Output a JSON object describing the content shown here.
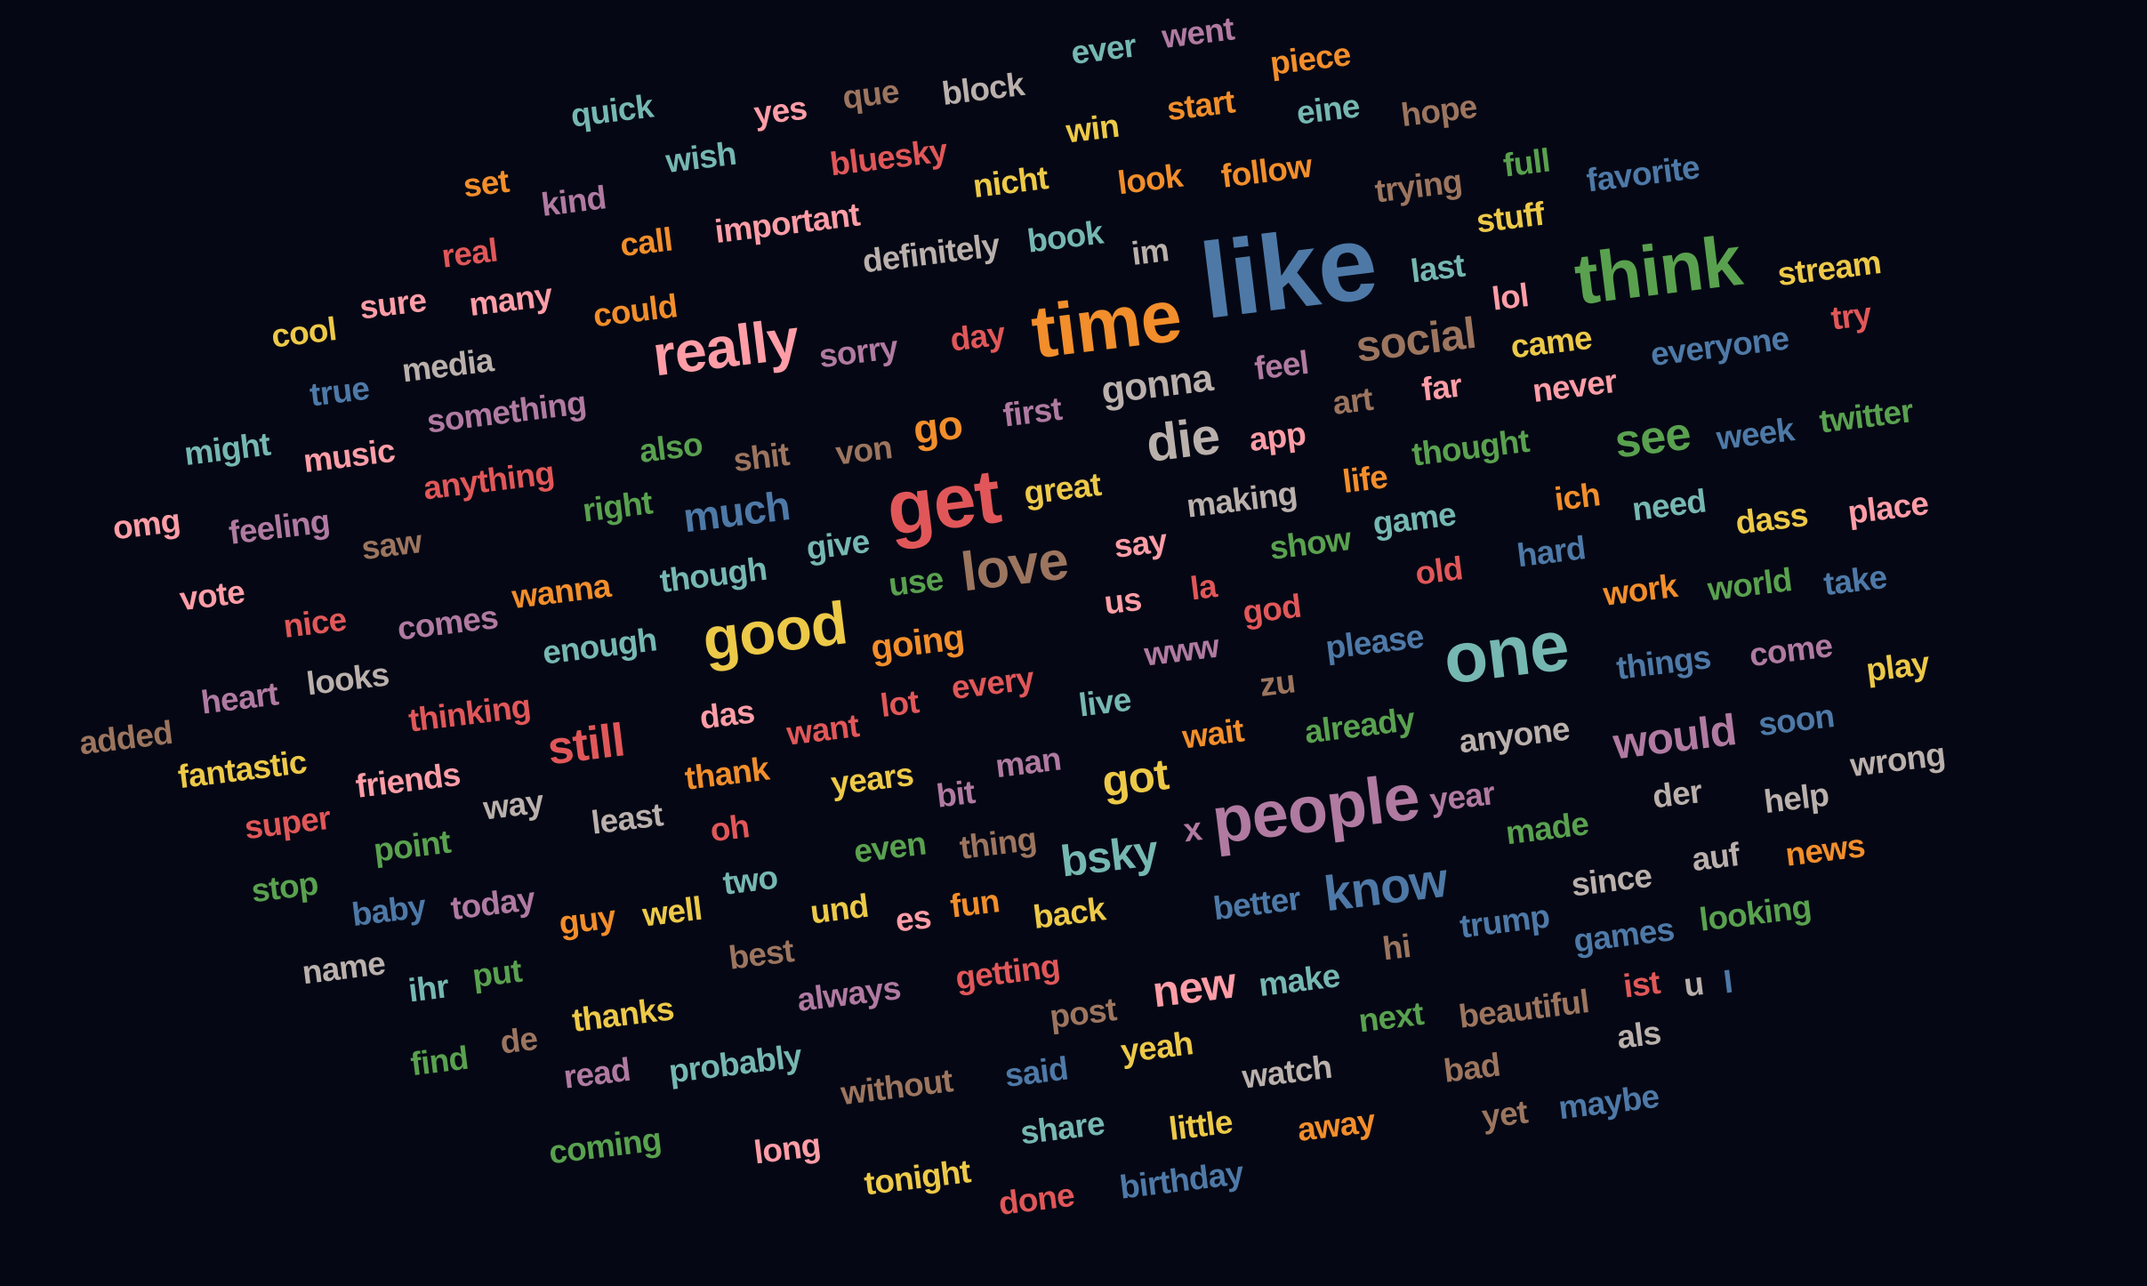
{
  "words": [
    {
      "text": "like",
      "color": "#4e79a7"
    },
    {
      "text": "time",
      "color": "#f28e2b"
    },
    {
      "text": "think",
      "color": "#59a14f"
    },
    {
      "text": "get",
      "color": "#e15759"
    },
    {
      "text": "people",
      "color": "#b07aa1"
    },
    {
      "text": "one",
      "color": "#76b7b2"
    },
    {
      "text": "good",
      "color": "#edc948"
    },
    {
      "text": "really",
      "color": "#ff9da7"
    },
    {
      "text": "love",
      "color": "#9c755f"
    },
    {
      "text": "die",
      "color": "#bab0ac"
    },
    {
      "text": "know",
      "color": "#4e79a7"
    },
    {
      "text": "still",
      "color": "#e15759"
    },
    {
      "text": "social",
      "color": "#9c755f"
    },
    {
      "text": "gonna",
      "color": "#bab0ac"
    },
    {
      "text": "would",
      "color": "#b07aa1"
    },
    {
      "text": "bsky",
      "color": "#76b7b2"
    },
    {
      "text": "got",
      "color": "#edc948"
    },
    {
      "text": "much",
      "color": "#4e79a7"
    },
    {
      "text": "see",
      "color": "#59a14f"
    },
    {
      "text": "new",
      "color": "#ff9da7"
    },
    {
      "text": "go",
      "color": "#f28e2b"
    },
    {
      "text": "going",
      "color": "#f28e2b"
    },
    {
      "text": "ever",
      "color": "#76b7b2"
    },
    {
      "text": "went",
      "color": "#b07aa1"
    },
    {
      "text": "piece",
      "color": "#f28e2b"
    },
    {
      "text": "quick",
      "color": "#76b7b2"
    },
    {
      "text": "yes",
      "color": "#ff9da7"
    },
    {
      "text": "que",
      "color": "#9c755f"
    },
    {
      "text": "block",
      "color": "#bab0ac"
    },
    {
      "text": "win",
      "color": "#edc948"
    },
    {
      "text": "start",
      "color": "#f28e2b"
    },
    {
      "text": "eine",
      "color": "#76b7b2"
    },
    {
      "text": "hope",
      "color": "#9c755f"
    },
    {
      "text": "wish",
      "color": "#76b7b2"
    },
    {
      "text": "bluesky",
      "color": "#e15759"
    },
    {
      "text": "full",
      "color": "#59a14f"
    },
    {
      "text": "set",
      "color": "#f28e2b"
    },
    {
      "text": "kind",
      "color": "#b07aa1"
    },
    {
      "text": "nicht",
      "color": "#edc948"
    },
    {
      "text": "look",
      "color": "#f28e2b"
    },
    {
      "text": "follow",
      "color": "#f28e2b"
    },
    {
      "text": "trying",
      "color": "#9c755f"
    },
    {
      "text": "favorite",
      "color": "#4e79a7"
    },
    {
      "text": "stuff",
      "color": "#edc948"
    },
    {
      "text": "real",
      "color": "#e15759"
    },
    {
      "text": "call",
      "color": "#f28e2b"
    },
    {
      "text": "important",
      "color": "#ff9da7"
    },
    {
      "text": "book",
      "color": "#76b7b2"
    },
    {
      "text": "im",
      "color": "#bab0ac"
    },
    {
      "text": "definitely",
      "color": "#bab0ac"
    },
    {
      "text": "last",
      "color": "#76b7b2"
    },
    {
      "text": "stream",
      "color": "#edc948"
    },
    {
      "text": "cool",
      "color": "#edc948"
    },
    {
      "text": "sure",
      "color": "#ff9da7"
    },
    {
      "text": "many",
      "color": "#ff9da7"
    },
    {
      "text": "could",
      "color": "#f28e2b"
    },
    {
      "text": "lol",
      "color": "#ff9da7"
    },
    {
      "text": "came",
      "color": "#edc948"
    },
    {
      "text": "try",
      "color": "#e15759"
    },
    {
      "text": "true",
      "color": "#4e79a7"
    },
    {
      "text": "media",
      "color": "#bab0ac"
    },
    {
      "text": "sorry",
      "color": "#b07aa1"
    },
    {
      "text": "day",
      "color": "#e15759"
    },
    {
      "text": "everyone",
      "color": "#4e79a7"
    },
    {
      "text": "feel",
      "color": "#b07aa1"
    },
    {
      "text": "far",
      "color": "#ff9da7"
    },
    {
      "text": "never",
      "color": "#ff9da7"
    },
    {
      "text": "art",
      "color": "#9c755f"
    },
    {
      "text": "something",
      "color": "#b07aa1"
    },
    {
      "text": "first",
      "color": "#b07aa1"
    },
    {
      "text": "twitter",
      "color": "#59a14f"
    },
    {
      "text": "might",
      "color": "#76b7b2"
    },
    {
      "text": "music",
      "color": "#ff9da7"
    },
    {
      "text": "also",
      "color": "#59a14f"
    },
    {
      "text": "shit",
      "color": "#9c755f"
    },
    {
      "text": "von",
      "color": "#9c755f"
    },
    {
      "text": "app",
      "color": "#ff9da7"
    },
    {
      "text": "thought",
      "color": "#59a14f"
    },
    {
      "text": "week",
      "color": "#4e79a7"
    },
    {
      "text": "anything",
      "color": "#e15759"
    },
    {
      "text": "omg",
      "color": "#ff9da7"
    },
    {
      "text": "feeling",
      "color": "#b07aa1"
    },
    {
      "text": "right",
      "color": "#59a14f"
    },
    {
      "text": "great",
      "color": "#edc948"
    },
    {
      "text": "making",
      "color": "#bab0ac"
    },
    {
      "text": "life",
      "color": "#f28e2b"
    },
    {
      "text": "ich",
      "color": "#f28e2b"
    },
    {
      "text": "need",
      "color": "#76b7b2"
    },
    {
      "text": "dass",
      "color": "#edc948"
    },
    {
      "text": "place",
      "color": "#ff9da7"
    },
    {
      "text": "saw",
      "color": "#9c755f"
    },
    {
      "text": "give",
      "color": "#76b7b2"
    },
    {
      "text": "say",
      "color": "#ff9da7"
    },
    {
      "text": "show",
      "color": "#59a14f"
    },
    {
      "text": "game",
      "color": "#76b7b2"
    },
    {
      "text": "hard",
      "color": "#4e79a7"
    },
    {
      "text": "vote",
      "color": "#ff9da7"
    },
    {
      "text": "wanna",
      "color": "#f28e2b"
    },
    {
      "text": "though",
      "color": "#76b7b2"
    },
    {
      "text": "use",
      "color": "#59a14f"
    },
    {
      "text": "us",
      "color": "#ff9da7"
    },
    {
      "text": "la",
      "color": "#e15759"
    },
    {
      "text": "god",
      "color": "#e15759"
    },
    {
      "text": "old",
      "color": "#e15759"
    },
    {
      "text": "work",
      "color": "#f28e2b"
    },
    {
      "text": "world",
      "color": "#59a14f"
    },
    {
      "text": "take",
      "color": "#4e79a7"
    },
    {
      "text": "nice",
      "color": "#e15759"
    },
    {
      "text": "comes",
      "color": "#b07aa1"
    },
    {
      "text": "enough",
      "color": "#76b7b2"
    },
    {
      "text": "www",
      "color": "#b07aa1"
    },
    {
      "text": "please",
      "color": "#4e79a7"
    },
    {
      "text": "things",
      "color": "#4e79a7"
    },
    {
      "text": "come",
      "color": "#b07aa1"
    },
    {
      "text": "play",
      "color": "#edc948"
    },
    {
      "text": "heart",
      "color": "#b07aa1"
    },
    {
      "text": "looks",
      "color": "#bab0ac"
    },
    {
      "text": "every",
      "color": "#e15759"
    },
    {
      "text": "zu",
      "color": "#9c755f"
    },
    {
      "text": "added",
      "color": "#9c755f"
    },
    {
      "text": "thinking",
      "color": "#e15759"
    },
    {
      "text": "das",
      "color": "#ff9da7"
    },
    {
      "text": "lot",
      "color": "#e15759"
    },
    {
      "text": "live",
      "color": "#76b7b2"
    },
    {
      "text": "wait",
      "color": "#f28e2b"
    },
    {
      "text": "already",
      "color": "#59a14f"
    },
    {
      "text": "anyone",
      "color": "#bab0ac"
    },
    {
      "text": "soon",
      "color": "#4e79a7"
    },
    {
      "text": "wrong",
      "color": "#bab0ac"
    },
    {
      "text": "fantastic",
      "color": "#edc948"
    },
    {
      "text": "want",
      "color": "#e15759"
    },
    {
      "text": "man",
      "color": "#b07aa1"
    },
    {
      "text": "friends",
      "color": "#ff9da7"
    },
    {
      "text": "thank",
      "color": "#f28e2b"
    },
    {
      "text": "years",
      "color": "#edc948"
    },
    {
      "text": "bit",
      "color": "#b07aa1"
    },
    {
      "text": "year",
      "color": "#b07aa1"
    },
    {
      "text": "der",
      "color": "#bab0ac"
    },
    {
      "text": "help",
      "color": "#bab0ac"
    },
    {
      "text": "super",
      "color": "#e15759"
    },
    {
      "text": "way",
      "color": "#bab0ac"
    },
    {
      "text": "least",
      "color": "#bab0ac"
    },
    {
      "text": "oh",
      "color": "#e15759"
    },
    {
      "text": "x",
      "color": "#b07aa1"
    },
    {
      "text": "made",
      "color": "#59a14f"
    },
    {
      "text": "point",
      "color": "#59a14f"
    },
    {
      "text": "even",
      "color": "#59a14f"
    },
    {
      "text": "thing",
      "color": "#9c755f"
    },
    {
      "text": "auf",
      "color": "#bab0ac"
    },
    {
      "text": "news",
      "color": "#f28e2b"
    },
    {
      "text": "stop",
      "color": "#59a14f"
    },
    {
      "text": "two",
      "color": "#76b7b2"
    },
    {
      "text": "since",
      "color": "#bab0ac"
    },
    {
      "text": "baby",
      "color": "#4e79a7"
    },
    {
      "text": "today",
      "color": "#b07aa1"
    },
    {
      "text": "guy",
      "color": "#f28e2b"
    },
    {
      "text": "well",
      "color": "#edc948"
    },
    {
      "text": "und",
      "color": "#edc948"
    },
    {
      "text": "es",
      "color": "#ff9da7"
    },
    {
      "text": "fun",
      "color": "#f28e2b"
    },
    {
      "text": "back",
      "color": "#edc948"
    },
    {
      "text": "better",
      "color": "#4e79a7"
    },
    {
      "text": "trump",
      "color": "#4e79a7"
    },
    {
      "text": "games",
      "color": "#4e79a7"
    },
    {
      "text": "looking",
      "color": "#59a14f"
    },
    {
      "text": "name",
      "color": "#bab0ac"
    },
    {
      "text": "best",
      "color": "#9c755f"
    },
    {
      "text": "hi",
      "color": "#9c755f"
    },
    {
      "text": "ihr",
      "color": "#76b7b2"
    },
    {
      "text": "put",
      "color": "#59a14f"
    },
    {
      "text": "always",
      "color": "#b07aa1"
    },
    {
      "text": "getting",
      "color": "#e15759"
    },
    {
      "text": "make",
      "color": "#76b7b2"
    },
    {
      "text": "ist",
      "color": "#e15759"
    },
    {
      "text": "u",
      "color": "#bab0ac"
    },
    {
      "text": "I",
      "color": "#4e79a7"
    },
    {
      "text": "thanks",
      "color": "#edc948"
    },
    {
      "text": "post",
      "color": "#9c755f"
    },
    {
      "text": "beautiful",
      "color": "#9c755f"
    },
    {
      "text": "next",
      "color": "#59a14f"
    },
    {
      "text": "de",
      "color": "#9c755f"
    },
    {
      "text": "yeah",
      "color": "#edc948"
    },
    {
      "text": "als",
      "color": "#bab0ac"
    },
    {
      "text": "find",
      "color": "#59a14f"
    },
    {
      "text": "read",
      "color": "#b07aa1"
    },
    {
      "text": "probably",
      "color": "#76b7b2"
    },
    {
      "text": "watch",
      "color": "#bab0ac"
    },
    {
      "text": "bad",
      "color": "#9c755f"
    },
    {
      "text": "said",
      "color": "#4e79a7"
    },
    {
      "text": "without",
      "color": "#9c755f"
    },
    {
      "text": "yet",
      "color": "#9c755f"
    },
    {
      "text": "maybe",
      "color": "#4e79a7"
    },
    {
      "text": "share",
      "color": "#76b7b2"
    },
    {
      "text": "little",
      "color": "#edc948"
    },
    {
      "text": "away",
      "color": "#f28e2b"
    },
    {
      "text": "coming",
      "color": "#59a14f"
    },
    {
      "text": "long",
      "color": "#ff9da7"
    },
    {
      "text": "tonight",
      "color": "#edc948"
    },
    {
      "text": "birthday",
      "color": "#4e79a7"
    },
    {
      "text": "done",
      "color": "#e15759"
    }
  ]
}
